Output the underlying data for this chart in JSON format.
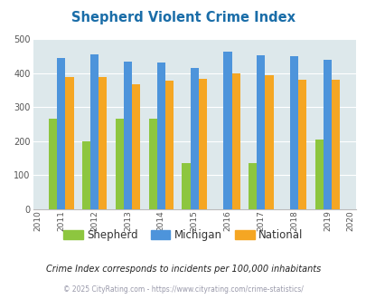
{
  "title": "Shepherd Violent Crime Index",
  "data_years": [
    2011,
    2012,
    2013,
    2014,
    2015,
    2016,
    2017,
    2018,
    2019
  ],
  "shepherd": [
    265,
    200,
    265,
    265,
    135,
    0,
    135,
    0,
    205
  ],
  "michigan": [
    445,
    455,
    432,
    430,
    415,
    462,
    451,
    450,
    438
  ],
  "national": [
    388,
    388,
    367,
    378,
    383,
    398,
    394,
    380,
    379
  ],
  "shepherd_color": "#8dc63f",
  "michigan_color": "#4d94db",
  "national_color": "#f5a623",
  "bg_color": "#dde8eb",
  "fig_bg_color": "#ffffff",
  "ylim": [
    0,
    500
  ],
  "yticks": [
    0,
    100,
    200,
    300,
    400,
    500
  ],
  "subtitle": "Crime Index corresponds to incidents per 100,000 inhabitants",
  "footer": "© 2025 CityRating.com - https://www.cityrating.com/crime-statistics/",
  "legend_labels": [
    "Shepherd",
    "Michigan",
    "National"
  ],
  "bar_width": 0.25,
  "title_color": "#1a6da8",
  "tick_color": "#555555",
  "subtitle_color": "#222222",
  "footer_color": "#9999aa"
}
